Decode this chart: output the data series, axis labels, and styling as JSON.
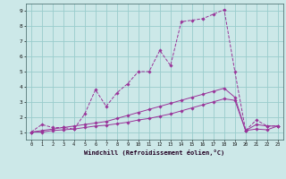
{
  "xlabel": "Windchill (Refroidissement éolien,°C)",
  "bg_color": "#cce8e8",
  "grid_color": "#99cccc",
  "line_color": "#993399",
  "x_ticks": [
    0,
    1,
    2,
    3,
    4,
    5,
    6,
    7,
    8,
    9,
    10,
    11,
    12,
    13,
    14,
    15,
    16,
    17,
    18,
    19,
    20,
    21,
    22,
    23
  ],
  "y_ticks": [
    1,
    2,
    3,
    4,
    5,
    6,
    7,
    8,
    9
  ],
  "xlim": [
    -0.5,
    23.5
  ],
  "ylim": [
    0.5,
    9.5
  ],
  "series1_x": [
    0,
    1,
    2,
    3,
    4,
    5,
    6,
    7,
    8,
    9,
    10,
    11,
    12,
    13,
    14,
    15,
    16,
    17,
    18,
    19,
    20,
    21,
    22,
    23
  ],
  "series1_y": [
    1.0,
    1.5,
    1.3,
    1.3,
    1.2,
    2.2,
    3.8,
    2.7,
    3.6,
    4.2,
    5.0,
    5.0,
    6.4,
    5.4,
    8.3,
    8.4,
    8.5,
    8.8,
    9.1,
    5.0,
    1.1,
    1.8,
    1.4,
    1.4
  ],
  "series2_x": [
    0,
    1,
    2,
    3,
    4,
    5,
    6,
    7,
    8,
    9,
    10,
    11,
    12,
    13,
    14,
    15,
    16,
    17,
    18,
    19,
    20,
    21,
    22,
    23
  ],
  "series2_y": [
    1.0,
    1.1,
    1.2,
    1.3,
    1.4,
    1.5,
    1.6,
    1.7,
    1.9,
    2.1,
    2.3,
    2.5,
    2.7,
    2.9,
    3.1,
    3.3,
    3.5,
    3.7,
    3.9,
    3.3,
    1.1,
    1.5,
    1.4,
    1.4
  ],
  "series3_x": [
    0,
    1,
    2,
    3,
    4,
    5,
    6,
    7,
    8,
    9,
    10,
    11,
    12,
    13,
    14,
    15,
    16,
    17,
    18,
    19,
    20,
    21,
    22,
    23
  ],
  "series3_y": [
    1.0,
    1.0,
    1.1,
    1.15,
    1.2,
    1.3,
    1.4,
    1.45,
    1.55,
    1.65,
    1.8,
    1.9,
    2.05,
    2.2,
    2.4,
    2.6,
    2.8,
    3.0,
    3.2,
    3.1,
    1.1,
    1.2,
    1.15,
    1.4
  ]
}
